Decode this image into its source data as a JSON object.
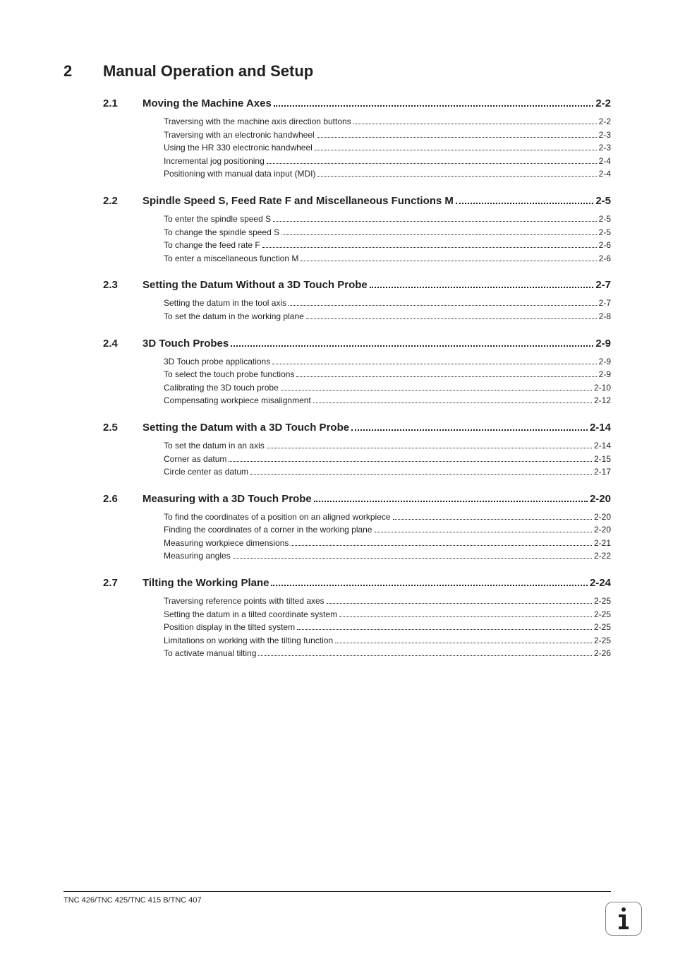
{
  "colors": {
    "text": "#231f20",
    "background": "#ffffff",
    "icon_border": "#808080",
    "icon_fill": "#231f20"
  },
  "typography": {
    "chapter_fontsize": 22,
    "section_fontsize": 15,
    "subitem_fontsize": 12,
    "footer_fontsize": 11,
    "font_family": "Arial"
  },
  "chapter": {
    "number": "2",
    "title": "Manual Operation and Setup"
  },
  "sections": [
    {
      "num": "2.1",
      "title": "Moving the Machine Axes",
      "page": "2-2",
      "items": [
        {
          "title": "Traversing with the machine axis direction buttons",
          "page": "2-2"
        },
        {
          "title": "Traversing with an electronic handwheel",
          "page": "2-3"
        },
        {
          "title": "Using the HR 330 electronic handwheel",
          "page": "2-3"
        },
        {
          "title": "Incremental jog positioning",
          "page": "2-4"
        },
        {
          "title": "Positioning with manual data input (MDI)",
          "page": "2-4"
        }
      ]
    },
    {
      "num": "2.2",
      "title": "Spindle Speed S, Feed Rate F and Miscellaneous Functions M",
      "page": "2-5",
      "items": [
        {
          "title": "To enter the spindle speed S",
          "page": "2-5"
        },
        {
          "title": "To change the spindle speed S",
          "page": "2-5"
        },
        {
          "title": "To change the feed rate F",
          "page": "2-6"
        },
        {
          "title": "To enter a miscellaneous function M",
          "page": "2-6"
        }
      ]
    },
    {
      "num": "2.3",
      "title": "Setting the Datum Without a 3D Touch Probe",
      "page": "2-7",
      "items": [
        {
          "title": "Setting the datum in the tool axis",
          "page": "2-7"
        },
        {
          "title": "To set the datum in the working plane",
          "page": "2-8"
        }
      ]
    },
    {
      "num": "2.4",
      "title": "3D Touch Probes",
      "page": "2-9",
      "items": [
        {
          "title": "3D Touch probe applications",
          "page": "2-9"
        },
        {
          "title": "To select the touch probe functions",
          "page": "2-9"
        },
        {
          "title": "Calibrating the 3D touch probe",
          "page": "2-10"
        },
        {
          "title": "Compensating workpiece misalignment",
          "page": "2-12"
        }
      ]
    },
    {
      "num": "2.5",
      "title": "Setting the Datum with a 3D Touch Probe",
      "page": "2-14",
      "items": [
        {
          "title": "To set the datum in an axis",
          "page": "2-14"
        },
        {
          "title": "Corner as datum",
          "page": "2-15"
        },
        {
          "title": "Circle center as datum",
          "page": "2-17"
        }
      ]
    },
    {
      "num": "2.6",
      "title": "Measuring with a 3D Touch Probe",
      "page": "2-20",
      "items": [
        {
          "title": "To find the coordinates of a position on an aligned workpiece",
          "page": "2-20"
        },
        {
          "title": "Finding the coordinates of a corner in the working plane",
          "page": "2-20"
        },
        {
          "title": "Measuring workpiece dimensions",
          "page": "2-21"
        },
        {
          "title": "Measuring angles",
          "page": "2-22"
        }
      ]
    },
    {
      "num": "2.7",
      "title": "Tilting the Working Plane",
      "page": "2-24",
      "items": [
        {
          "title": "Traversing reference points with tilted axes",
          "page": "2-25"
        },
        {
          "title": "Setting the datum in a tilted coordinate system",
          "page": "2-25"
        },
        {
          "title": "Position display in the tilted system",
          "page": "2-25"
        },
        {
          "title": "Limitations on working with the tilting function",
          "page": "2-25"
        },
        {
          "title": "To activate manual tilting",
          "page": "2-26"
        }
      ]
    }
  ],
  "footer": {
    "text": "TNC 426/TNC 425/TNC 415 B/TNC 407"
  }
}
